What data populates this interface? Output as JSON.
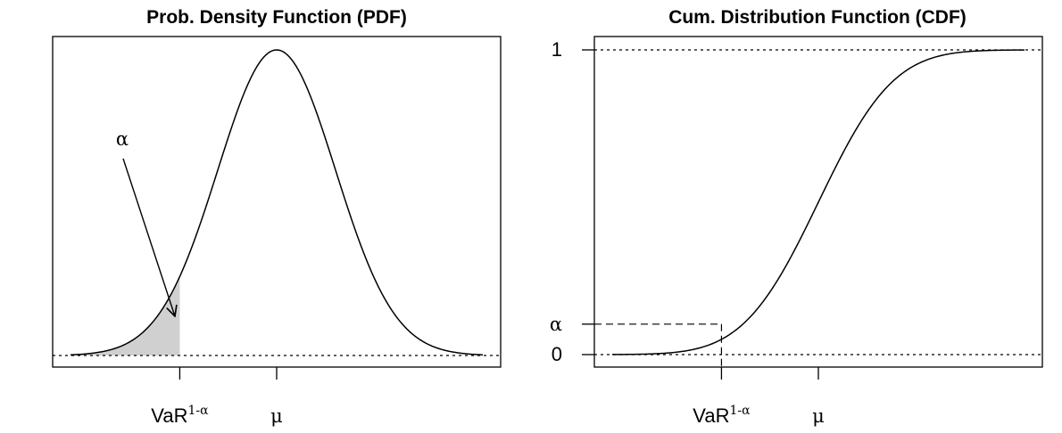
{
  "chart_data": [
    {
      "type": "area",
      "title": "Prob. Density Function (PDF)",
      "distribution": "normal",
      "x_ticks": [
        {
          "label": "VaR",
          "superscript": "1-α",
          "value": -1.6449
        },
        {
          "label": "μ",
          "superscript": "",
          "value": 0
        }
      ],
      "shaded_region": {
        "from": -3.5,
        "to": -1.6449,
        "color": "#d0d0d0"
      },
      "annotation": {
        "text": "α",
        "points_to": "shaded_region"
      },
      "reference_lines": [
        {
          "axis": "y",
          "value": 0,
          "style": "dotted"
        }
      ],
      "xlim": [
        -3.5,
        3.5
      ],
      "y_ticks_shown": false
    },
    {
      "type": "line",
      "title": "Cum. Distribution Function (CDF)",
      "distribution": "normal",
      "x_ticks": [
        {
          "label": "VaR",
          "superscript": "1-α",
          "value": -1.6449
        },
        {
          "label": "μ",
          "superscript": "",
          "value": 0
        }
      ],
      "y_ticks": [
        {
          "label": "1",
          "value": 1
        },
        {
          "label": "α",
          "value": 0.1
        },
        {
          "label": "0",
          "value": 0
        }
      ],
      "reference_lines": [
        {
          "axis": "y",
          "value": 1,
          "style": "dotted"
        },
        {
          "axis": "y",
          "value": 0,
          "style": "dotted"
        }
      ],
      "guide_lines": {
        "at_x": -1.6449,
        "at_y": 0.1,
        "style": "dashed"
      },
      "xlim": [
        -3.5,
        3.5
      ],
      "ylim": [
        0,
        1
      ]
    }
  ]
}
